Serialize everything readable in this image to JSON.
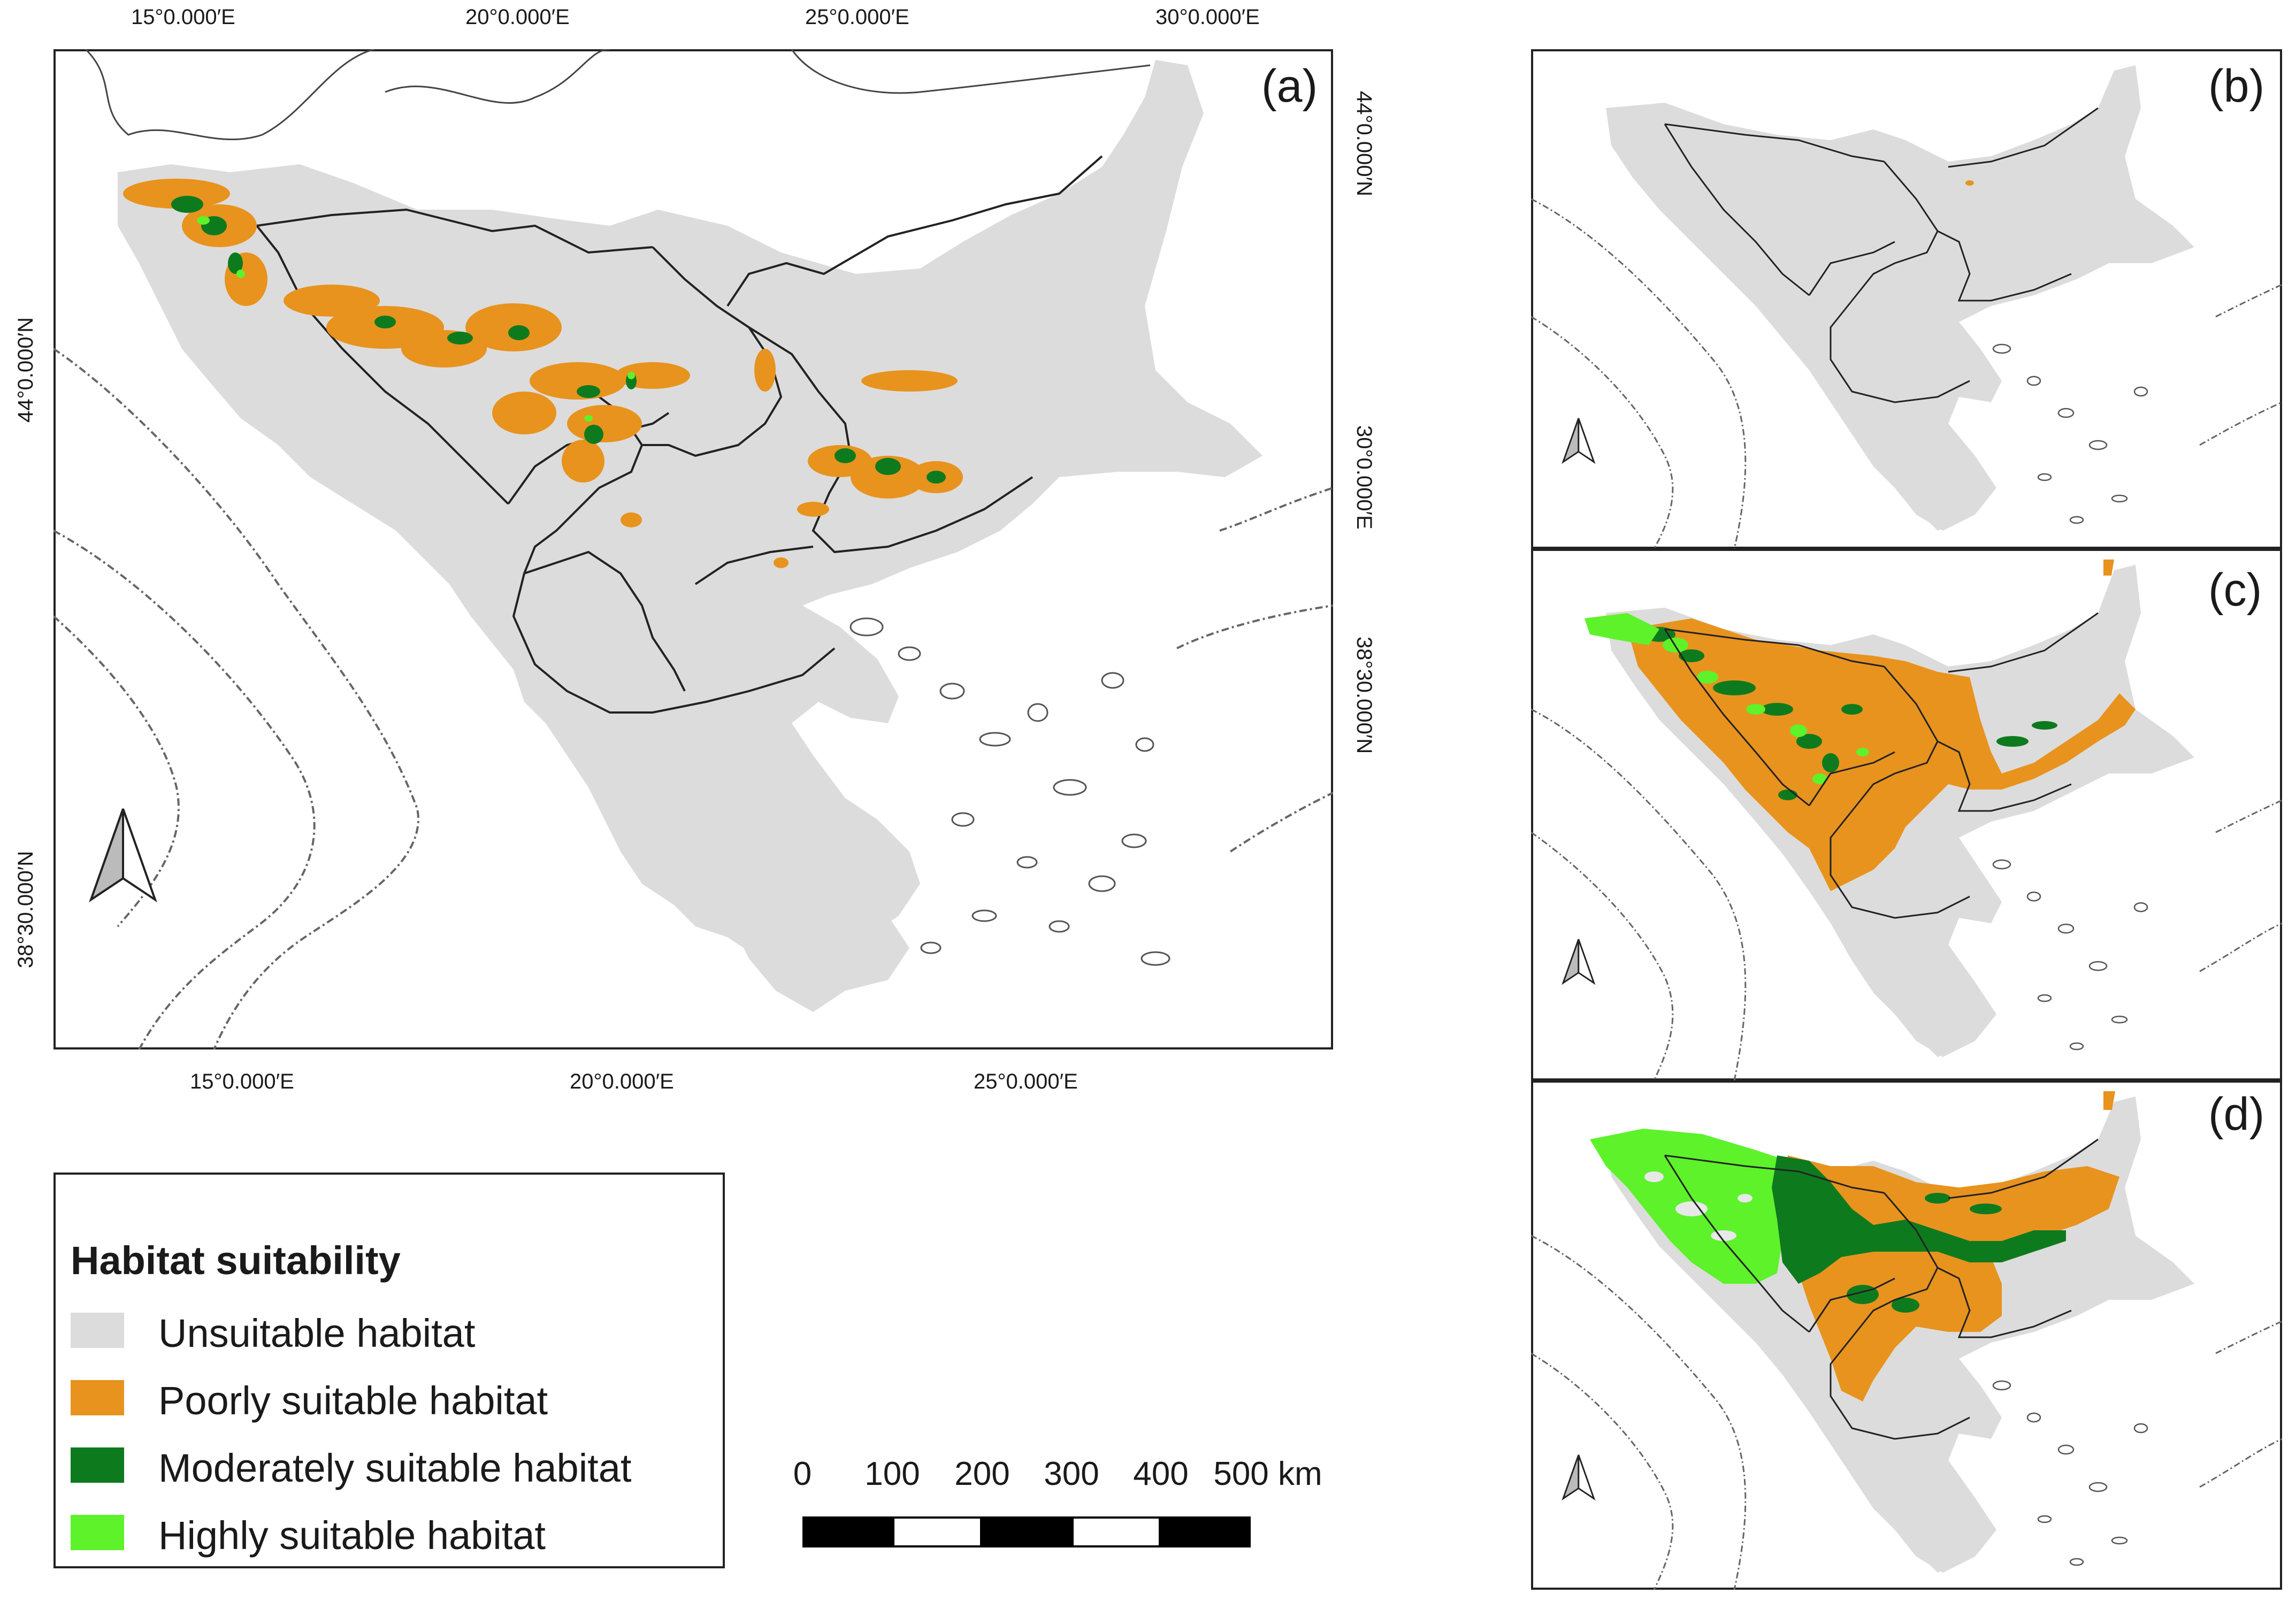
{
  "panel_a": {
    "label": "(a)",
    "top_ticks": [
      "15°0.000′E",
      "20°0.000′E",
      "25°0.000′E",
      "30°0.000′E"
    ],
    "bottom_ticks": [
      "15°0.000′E",
      "20°0.000′E",
      "25°0.000′E"
    ],
    "left_ticks": [
      "44°0.000′N",
      "38°30.000′N"
    ],
    "right_ticks": [
      "44°0.000′N",
      "30°0.000′E",
      "38°30.000′N"
    ]
  },
  "panel_b": {
    "label": "(b)"
  },
  "panel_c": {
    "label": "(c)"
  },
  "panel_d": {
    "label": "(d)"
  },
  "legend": {
    "title": "Habitat suitability",
    "items": [
      {
        "label": "Unsuitable habitat",
        "color": "#dcdcdc"
      },
      {
        "label": "Poorly suitable habitat",
        "color": "#e8931e"
      },
      {
        "label": "Moderately suitable habitat",
        "color": "#0e7a1e"
      },
      {
        "label": "Highly suitable habitat",
        "color": "#5df22a"
      }
    ]
  },
  "scale_bar": {
    "labels": [
      "0",
      "100",
      "200",
      "300",
      "400",
      "500 km"
    ]
  },
  "colors": {
    "land": "#dcdcdc",
    "poor": "#e8931e",
    "moderate": "#0e7a1e",
    "high": "#5df22a",
    "coastline": "#555555",
    "border": "#222222"
  },
  "icons": {
    "north_arrow": "north-arrow-icon"
  }
}
